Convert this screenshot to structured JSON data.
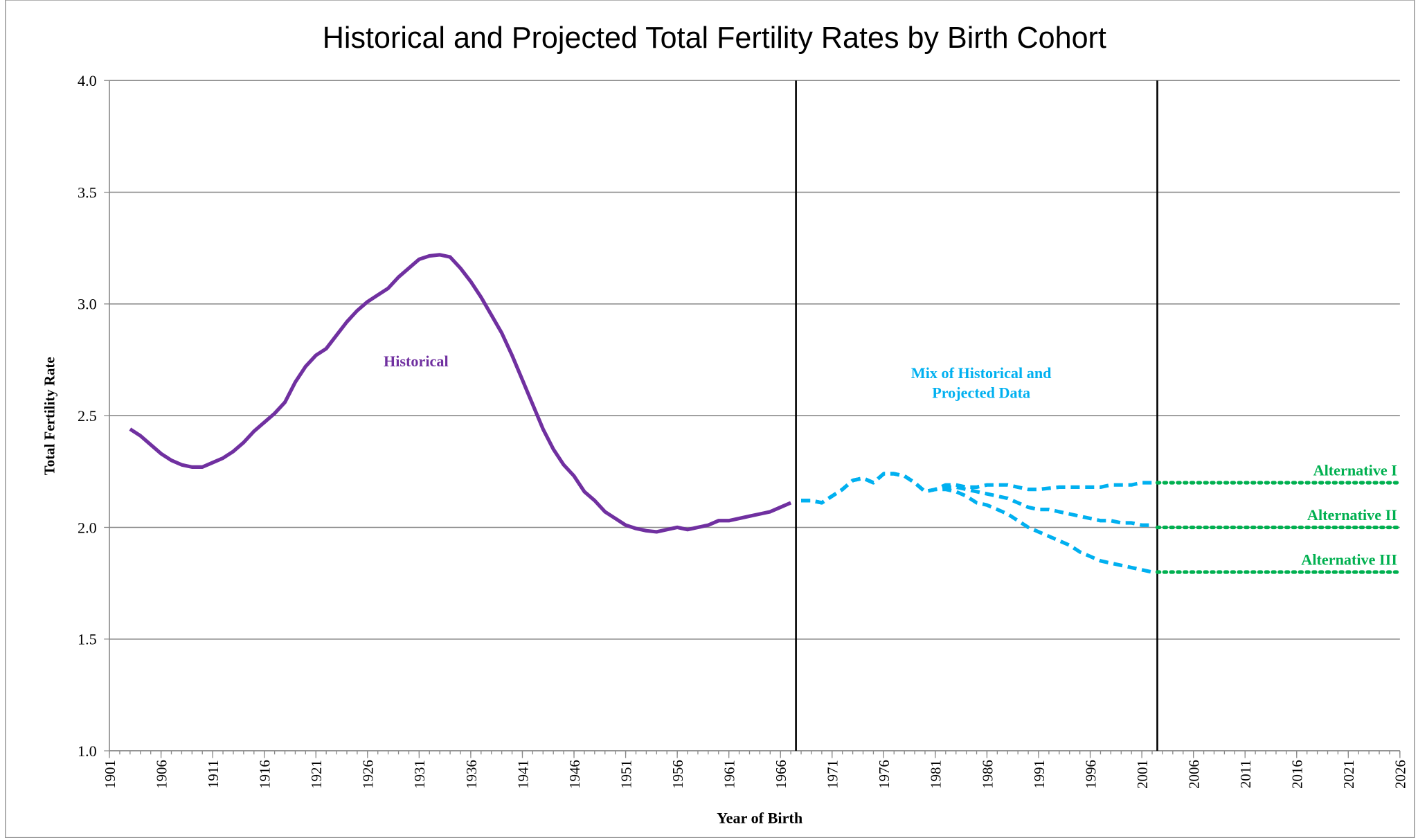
{
  "chart_data": {
    "type": "line",
    "title": "Historical and Projected Total Fertility Rates by Birth Cohort",
    "xlabel": "Year of Birth",
    "ylabel": "Total Fertility Rate",
    "xlim": [
      1901,
      2026
    ],
    "ylim": [
      1.0,
      4.0
    ],
    "xticks": [
      1901,
      1906,
      1911,
      1916,
      1921,
      1926,
      1931,
      1936,
      1941,
      1946,
      1951,
      1956,
      1961,
      1966,
      1971,
      1976,
      1981,
      1986,
      1991,
      1996,
      2001,
      2006,
      2011,
      2016,
      2021,
      2026
    ],
    "yticks": [
      {
        "value": 1,
        "label": "1.0"
      },
      1.5,
      {
        "value": 2,
        "label": "2.0"
      },
      2.5,
      {
        "value": 3,
        "label": "3.0"
      },
      3.5,
      {
        "value": 4,
        "label": "4.0"
      }
    ],
    "grid": true,
    "reference_lines": [
      1967.5,
      2002.5
    ],
    "annotations": [
      {
        "lines": [
          "Historical"
        ],
        "color": "#7030a0"
      },
      {
        "lines": [
          "Mix of Historical and",
          "Projected Data"
        ],
        "color": "#00b0f0"
      }
    ],
    "series": [
      {
        "color": "#7030a0",
        "style": "solid",
        "x": [
          1903,
          1904,
          1905,
          1906,
          1907,
          1908,
          1909,
          1910,
          1911,
          1912,
          1913,
          1914,
          1915,
          1916,
          1917,
          1918,
          1919,
          1920,
          1921,
          1922,
          1923,
          1924,
          1925,
          1926,
          1927,
          1928,
          1929,
          1930,
          1931,
          1932,
          1933,
          1934,
          1935,
          1936,
          1937,
          1938,
          1939,
          1940,
          1941,
          1942,
          1943,
          1944,
          1945,
          1946,
          1947,
          1948,
          1949,
          1950,
          1951,
          1952,
          1953,
          1954,
          1955,
          1956,
          1957,
          1958,
          1959,
          1960,
          1961,
          1962,
          1963,
          1964,
          1965,
          1966,
          1967
        ],
        "values": [
          2.44,
          2.41,
          2.37,
          2.33,
          2.3,
          2.28,
          2.27,
          2.27,
          2.29,
          2.31,
          2.34,
          2.38,
          2.43,
          2.47,
          2.51,
          2.56,
          2.65,
          2.72,
          2.77,
          2.8,
          2.86,
          2.92,
          2.97,
          3.01,
          3.04,
          3.07,
          3.12,
          3.16,
          3.2,
          3.215,
          3.22,
          3.21,
          3.16,
          3.1,
          3.03,
          2.95,
          2.87,
          2.77,
          2.66,
          2.55,
          2.44,
          2.35,
          2.28,
          2.23,
          2.16,
          2.12,
          2.07,
          2.04,
          2.01,
          1.995,
          1.985,
          1.98,
          1.99,
          2.0,
          1.99,
          2.0,
          2.01,
          2.03,
          2.03,
          2.04,
          2.05,
          2.06,
          2.07,
          2.09,
          2.11
        ]
      },
      {
        "color": "#00b0f0",
        "style": "dashed",
        "x": [
          1968,
          1969,
          1970,
          1971,
          1972,
          1973,
          1974,
          1975,
          1976,
          1977,
          1978,
          1979,
          1980,
          1981,
          1982,
          1983,
          1984,
          1985,
          1986,
          1987,
          1988,
          1989,
          1990,
          1991,
          1992,
          1993,
          1994,
          1995,
          1996,
          1997,
          1998,
          1999,
          2000,
          2001,
          2002
        ],
        "values": [
          2.12,
          2.12,
          2.11,
          2.14,
          2.17,
          2.21,
          2.22,
          2.2,
          2.24,
          2.24,
          2.23,
          2.2,
          2.16,
          2.17,
          2.19,
          2.19,
          2.18,
          2.18,
          2.19,
          2.19,
          2.19,
          2.18,
          2.17,
          2.17,
          2.175,
          2.18,
          2.18,
          2.18,
          2.18,
          2.18,
          2.19,
          2.19,
          2.19,
          2.2,
          2.2
        ]
      },
      {
        "color": "#00b0f0",
        "style": "dashed",
        "x": [
          1968,
          1969,
          1970,
          1971,
          1972,
          1973,
          1974,
          1975,
          1976,
          1977,
          1978,
          1979,
          1980,
          1981,
          1982,
          1983,
          1984,
          1985,
          1986,
          1987,
          1988,
          1989,
          1990,
          1991,
          1992,
          1993,
          1994,
          1995,
          1996,
          1997,
          1998,
          1999,
          2000,
          2001,
          2002
        ],
        "values": [
          2.12,
          2.12,
          2.11,
          2.14,
          2.17,
          2.21,
          2.22,
          2.2,
          2.24,
          2.24,
          2.23,
          2.2,
          2.16,
          2.17,
          2.18,
          2.18,
          2.17,
          2.16,
          2.15,
          2.14,
          2.13,
          2.11,
          2.09,
          2.08,
          2.08,
          2.07,
          2.06,
          2.05,
          2.04,
          2.03,
          2.03,
          2.02,
          2.02,
          2.01,
          2.01
        ]
      },
      {
        "color": "#00b0f0",
        "style": "dashed",
        "x": [
          1968,
          1969,
          1970,
          1971,
          1972,
          1973,
          1974,
          1975,
          1976,
          1977,
          1978,
          1979,
          1980,
          1981,
          1982,
          1983,
          1984,
          1985,
          1986,
          1987,
          1988,
          1989,
          1990,
          1991,
          1992,
          1993,
          1994,
          1995,
          1996,
          1997,
          1998,
          1999,
          2000,
          2001,
          2002
        ],
        "values": [
          2.12,
          2.12,
          2.11,
          2.14,
          2.17,
          2.21,
          2.22,
          2.2,
          2.24,
          2.24,
          2.23,
          2.2,
          2.16,
          2.17,
          2.17,
          2.16,
          2.14,
          2.11,
          2.1,
          2.08,
          2.06,
          2.03,
          2.0,
          1.98,
          1.96,
          1.94,
          1.92,
          1.89,
          1.87,
          1.85,
          1.84,
          1.83,
          1.82,
          1.81,
          1.8
        ]
      },
      {
        "name": "Alternative I",
        "color": "#00b050",
        "style": "dotted",
        "x": [
          2002.5,
          2026
        ],
        "values": [
          2.2,
          2.2
        ]
      },
      {
        "name": "Alternative II",
        "color": "#00b050",
        "style": "dotted",
        "x": [
          2002.5,
          2026
        ],
        "values": [
          2.0,
          2.0
        ]
      },
      {
        "name": "Alternative III",
        "color": "#00b050",
        "style": "dotted",
        "x": [
          2002.5,
          2026
        ],
        "values": [
          1.8,
          1.8
        ]
      }
    ]
  }
}
